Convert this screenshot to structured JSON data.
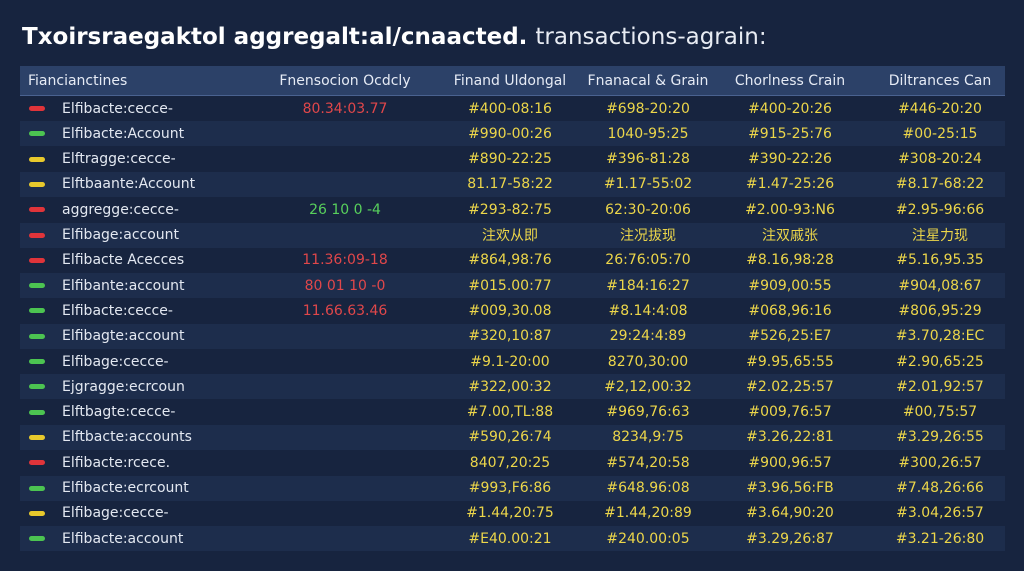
{
  "title_bold": "Txoirsraegaktol aggregalt:al/cnaacted.",
  "title_light": "transactions-agrain:",
  "table": {
    "headers": [
      "Fiancianctines",
      "Fnensocion Ocdcly",
      "Finand Uldongal",
      "Fnanacal & Grain",
      "Chorlness Crain",
      "Diltrances Can"
    ],
    "rows": [
      {
        "status": "red",
        "name": "Elfibacte:cecce-",
        "txn": "80.34:03.77",
        "txn_tone": "red",
        "values": [
          "#400-08:16",
          "#698-20:20",
          "#400-20:26",
          "#446-20:20"
        ]
      },
      {
        "status": "green",
        "name": "Elfibacte:Account",
        "values": [
          "#990-00:26",
          "1040-95:25",
          "#915-25:76",
          "#00-25:15"
        ]
      },
      {
        "status": "yellow",
        "name": "Elftragge:cecce-",
        "values": [
          "#890-22:25",
          "#396-81:28",
          "#390-22:26",
          "#308-20:24"
        ]
      },
      {
        "status": "yellow",
        "name": "Elftbaante:Account",
        "values": [
          "81.17-58:22",
          "#1.17-55:02",
          "#1.47-25:26",
          "#8.17-68:22"
        ]
      },
      {
        "status": "red",
        "name": "aggregge:cecce-",
        "txn": "26 10 0 -4",
        "txn_tone": "green",
        "values": [
          "#293-82:75",
          "62:30-20:06",
          "#2.00-93:N6",
          "#2.95-96:66"
        ]
      },
      {
        "status": "red",
        "name": "Elfibage:account",
        "values": [
          "注欢从即",
          "注况拔现",
          "注双戚张",
          "注星力现"
        ]
      },
      {
        "status": "red",
        "name": "Elfibacte Acecces",
        "txn": "11.36:09-18",
        "txn_tone": "red",
        "values": [
          "#864,98:76",
          "26:76:05:70",
          "#8.16,98:28",
          "#5.16,95.35"
        ]
      },
      {
        "status": "green",
        "name": "Elfibante:account",
        "txn": "80 01 10 -0",
        "txn_tone": "red",
        "values": [
          "#015.00:77",
          "#184:16:27",
          "#909,00:55",
          "#904,08:67"
        ]
      },
      {
        "status": "green",
        "name": "Elfibacte:cecce-",
        "txn": "11.66.63.46",
        "txn_tone": "red",
        "values": [
          "#009,30.08",
          "#8.14:4:08",
          "#068,96:16",
          "#806,95:29"
        ]
      },
      {
        "status": "green",
        "name": "Elfibagte:account",
        "values": [
          "#320,10:87",
          "29:24:4:89",
          "#526,25:E7",
          "#3.70,28:EC"
        ]
      },
      {
        "status": "green",
        "name": "Elfibage:cecce-",
        "values": [
          "#9.1-20:00",
          "8270,30:00",
          "#9.95,65:55",
          "#2.90,65:25"
        ]
      },
      {
        "status": "green",
        "name": "Ejgragge:ecrcoun",
        "values": [
          "#322,00:32",
          "#2,12,00:32",
          "#2.02,25:57",
          "#2.01,92:57"
        ]
      },
      {
        "status": "green",
        "name": "Elftbagte:cecce-",
        "values": [
          "#7.00,TL:88",
          "#969,76:63",
          "#009,76:57",
          "#00,75:57"
        ]
      },
      {
        "status": "yellow",
        "name": "Elftbacte:accounts",
        "values": [
          "#590,26:74",
          "8234,9:75",
          "#3.26,22:81",
          "#3.29,26:55"
        ]
      },
      {
        "status": "red",
        "name": "Elfibacte:rcece.",
        "values": [
          "8407,20:25",
          "#574,20:58",
          "#900,96:57",
          "#300,26:57"
        ]
      },
      {
        "status": "green",
        "name": "Elfibacte:ecrcount",
        "values": [
          "#993,F6:86",
          "#648.96:08",
          "#3.96,56:FB",
          "#7.48,26:66"
        ]
      },
      {
        "status": "yellow",
        "name": "Elfibage:cecce-",
        "values": [
          "#1.44,20:75",
          "#1.44,20:89",
          "#3.64,90:20",
          "#3.04,26:57"
        ]
      },
      {
        "status": "green",
        "name": "Elfibacte:account",
        "values": [
          "#E40.00:21",
          "#240.00:05",
          "#3.29,26:87",
          "#3.21-26:80"
        ]
      }
    ]
  }
}
